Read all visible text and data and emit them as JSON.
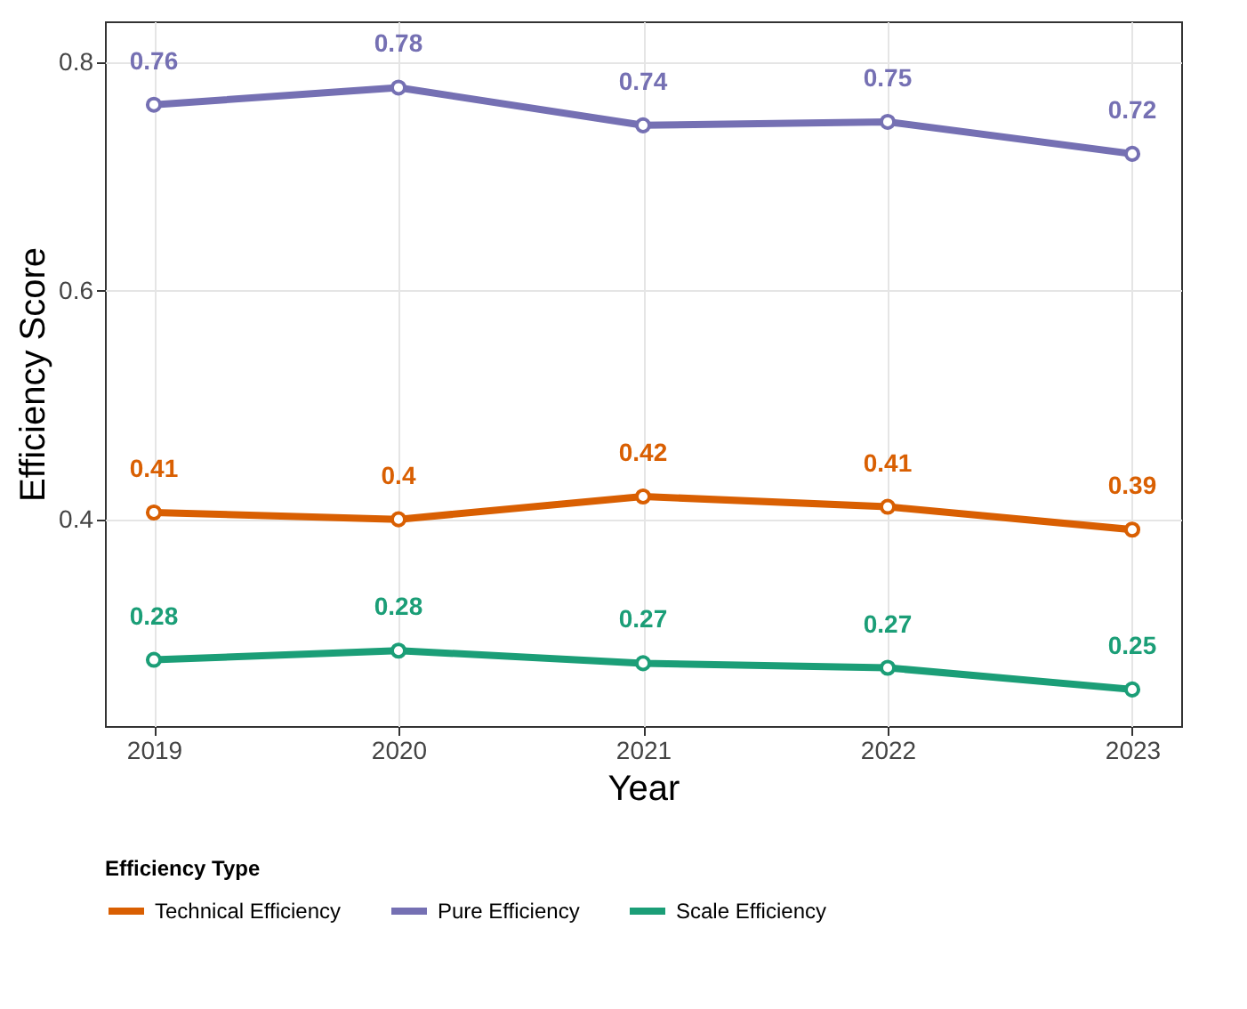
{
  "chart_data": {
    "type": "line",
    "xlabel": "Year",
    "ylabel": "Efficiency Score",
    "legend_title": "Efficiency Type",
    "x": [
      2019,
      2020,
      2021,
      2022,
      2023
    ],
    "xlim": [
      2018.8,
      2023.2
    ],
    "xticks": [
      2019,
      2020,
      2021,
      2022,
      2023
    ],
    "ylim": [
      0.219,
      0.836
    ],
    "yticks": [
      0.4,
      0.6,
      0.8
    ],
    "series": [
      {
        "name": "Technical Efficiency",
        "color": "#d95f02",
        "values": [
          0.406,
          0.4,
          0.42,
          0.411,
          0.391
        ],
        "value_labels": [
          "0.41",
          "0.4",
          "0.42",
          "0.41",
          "0.39"
        ]
      },
      {
        "name": "Pure Efficiency",
        "color": "#7570b3",
        "values": [
          0.763,
          0.778,
          0.745,
          0.748,
          0.72
        ],
        "value_labels": [
          "0.76",
          "0.78",
          "0.74",
          "0.75",
          "0.72"
        ]
      },
      {
        "name": "Scale Efficiency",
        "color": "#1b9e77",
        "values": [
          0.277,
          0.285,
          0.274,
          0.27,
          0.251
        ],
        "value_labels": [
          "0.28",
          "0.28",
          "0.27",
          "0.27",
          "0.25"
        ]
      }
    ],
    "grid": true,
    "legend": "bottom",
    "marker": "circle",
    "line_style": "solid"
  }
}
